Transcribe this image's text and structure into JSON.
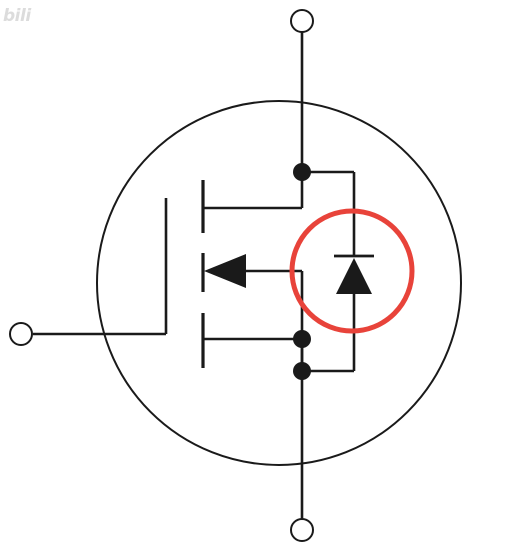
{
  "watermark": {
    "text": "bili"
  },
  "colors": {
    "wire": "#1a1a1a",
    "body": "#1a1a1a",
    "highlight": "#e8433a",
    "background": "#ffffff"
  },
  "symbol": {
    "device": "n-channel-mosfet-with-body-diode",
    "highlighted_element": "body-diode"
  }
}
